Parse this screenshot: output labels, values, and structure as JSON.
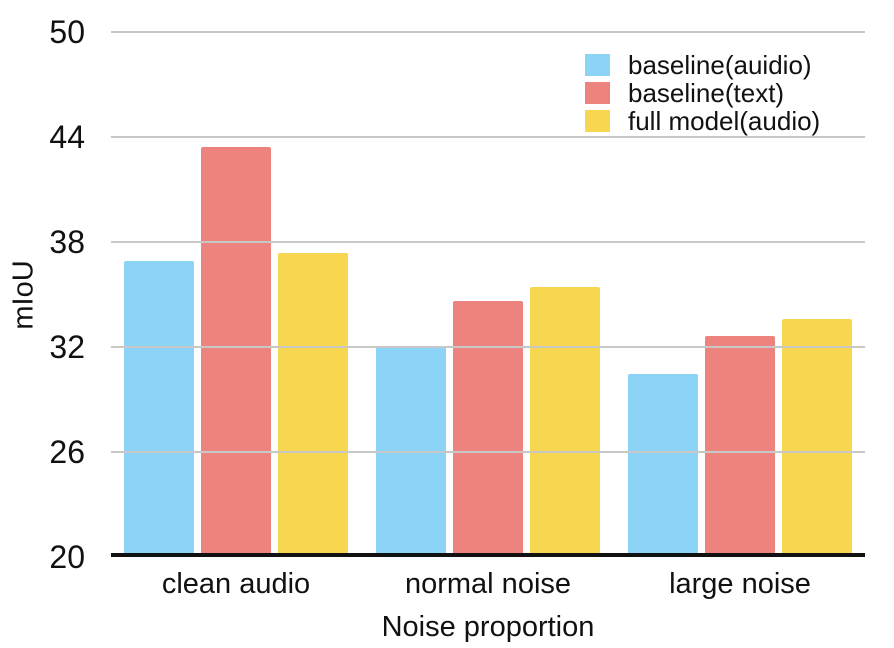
{
  "figure": {
    "background": "#ffffff",
    "text_color": "#111111"
  },
  "chart_data": {
    "type": "bar",
    "title": "",
    "xlabel": "Noise proportion",
    "ylabel": "mIoU",
    "categories": [
      "clean audio",
      "normal noise",
      "large noise"
    ],
    "series": [
      {
        "name": "baseline(auidio)",
        "color": "#8CD3F8",
        "values": [
          36.8,
          31.9,
          30.3
        ]
      },
      {
        "name": "baseline(text)",
        "color": "#ED837E",
        "values": [
          43.4,
          34.5,
          32.5
        ]
      },
      {
        "name": "full model(audio)",
        "color": "#F8D750",
        "values": [
          37.3,
          35.3,
          33.5
        ]
      }
    ],
    "ylim": [
      20,
      50
    ],
    "yticks": [
      20,
      26,
      32,
      38,
      44,
      50
    ],
    "grid": "horizontal",
    "gridline_color": "#c8c8c8",
    "axis_color": "#111111",
    "legend_position": "top-right"
  }
}
